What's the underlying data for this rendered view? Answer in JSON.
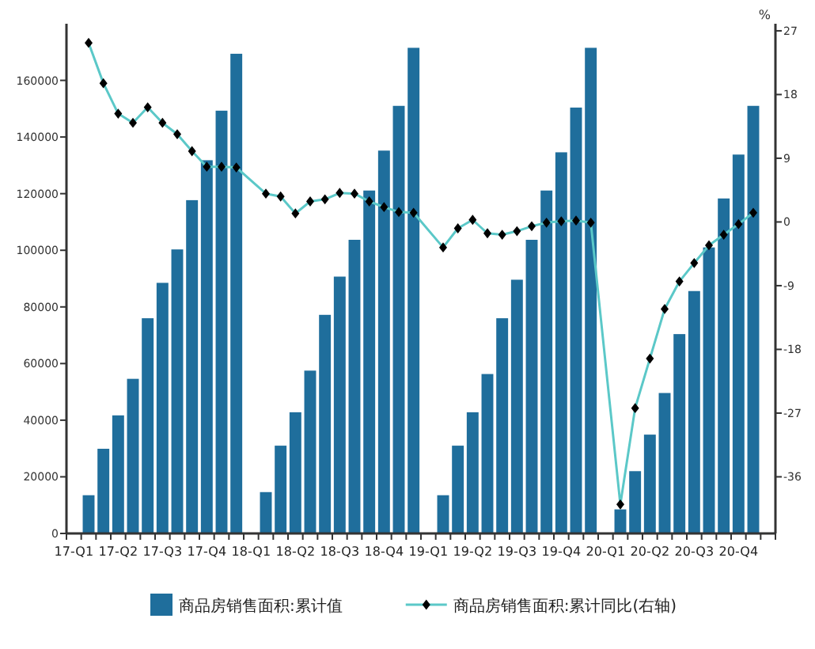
{
  "chart_data": {
    "type": "bar",
    "categories": [
      "17-Q1",
      null,
      null,
      "17-Q2",
      null,
      null,
      "17-Q3",
      null,
      null,
      "17-Q4",
      null,
      null,
      "18-Q1",
      null,
      null,
      "18-Q2",
      null,
      null,
      "18-Q3",
      null,
      null,
      "18-Q4",
      null,
      null,
      "19-Q1",
      null,
      null,
      "19-Q2",
      null,
      null,
      "19-Q3",
      null,
      null,
      "19-Q4",
      null,
      null,
      "20-Q1",
      null,
      null,
      "20-Q2",
      null,
      null,
      "20-Q3",
      null,
      null,
      "20-Q4",
      null,
      null
    ],
    "series": [
      {
        "name": "商品房销售面积:累计值",
        "color": "#1f6e9c",
        "values": [
          null,
          13500,
          29900,
          41700,
          54600,
          76000,
          88500,
          100300,
          117700,
          131800,
          149300,
          169400,
          null,
          14600,
          31000,
          42800,
          57500,
          77200,
          90700,
          103700,
          121100,
          135200,
          151000,
          171500,
          null,
          13500,
          31000,
          42800,
          56300,
          76000,
          89600,
          103700,
          121100,
          134600,
          150400,
          171500,
          null,
          8500,
          22000,
          34900,
          49600,
          70400,
          85600,
          101000,
          118300,
          133800,
          151000,
          null
        ]
      },
      {
        "name": "商品房销售面积:累计同比(右轴)",
        "type": "line",
        "axis": "y2",
        "color": "#5bc8c8",
        "marker": "diamond",
        "values": [
          null,
          25.3,
          19.6,
          15.3,
          14.0,
          16.2,
          14.0,
          12.4,
          10.0,
          7.8,
          7.8,
          7.7,
          null,
          4.0,
          3.6,
          1.2,
          2.9,
          3.2,
          4.1,
          4.0,
          2.9,
          2.1,
          1.4,
          1.3,
          null,
          -3.6,
          -0.9,
          0.3,
          -1.6,
          -1.8,
          -1.3,
          -0.6,
          -0.1,
          0.1,
          0.2,
          -0.1,
          null,
          -39.9,
          -26.3,
          -19.3,
          -12.3,
          -8.4,
          -5.8,
          -3.3,
          -1.8,
          -0.3,
          1.3,
          null
        ]
      }
    ],
    "ylim": [
      0,
      180000
    ],
    "yticks": [
      0,
      20000,
      40000,
      60000,
      80000,
      100000,
      120000,
      140000,
      160000
    ],
    "y2lim": [
      -44,
      28
    ],
    "y2ticks": [
      -36,
      -27,
      -18,
      -9,
      0,
      9,
      18,
      27
    ],
    "y2label": "%",
    "legend": "bottom"
  }
}
